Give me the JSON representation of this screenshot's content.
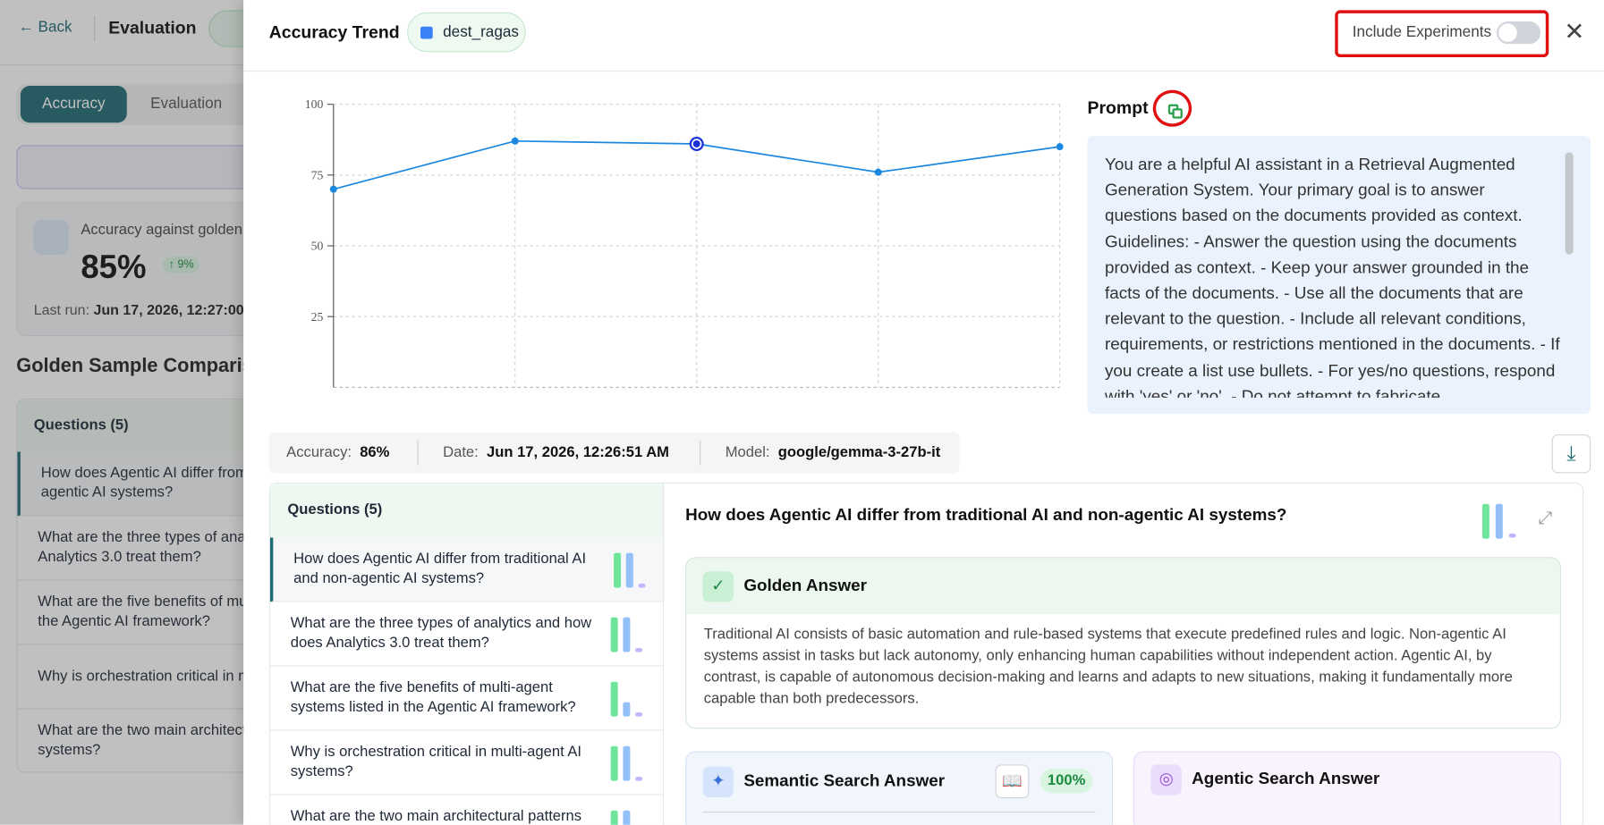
{
  "background": {
    "back": "Back",
    "title": "Evaluation",
    "tabs": [
      "Accuracy",
      "Evaluation"
    ],
    "accuracy_card": {
      "label": "Accuracy against golden s",
      "value": "85%",
      "change": "↑ 9%",
      "last_run_label": "Last run:",
      "last_run_value": "Jun 17, 2026, 12:27:00"
    },
    "section_title": "Golden Sample Comparis"
  },
  "questions": {
    "header": "Questions (5)",
    "items": [
      "How does Agentic AI differ from traditional AI and non-agentic AI systems?",
      "What are the three types of analytics and how does Analytics 3.0 treat them?",
      "What are the five benefits of multi-agent systems listed in the Agentic AI framework?",
      "Why is orchestration critical in multi-agent AI systems?",
      "What are the two main architectural patterns for multi-agent systems?"
    ]
  },
  "modal": {
    "title": "Accuracy Trend",
    "dataset": "dest_ragas",
    "include_experiments": "Include Experiments",
    "prompt": {
      "title": "Prompt",
      "text": "You are a helpful AI assistant in a Retrieval Augmented Generation System. Your primary goal is to answer questions based on the documents provided as context. Guidelines: - Answer the question using the documents provided as context. - Keep your answer grounded in the facts of the documents. - Use all the documents that are relevant to the question. - Include all relevant conditions, requirements, or restrictions mentioned in the documents. - If you create a list use bullets. - For yes/no questions, respond with 'yes' or 'no'. - Do not attempt to fabricate"
    },
    "meta": {
      "accuracy_label": "Accuracy:",
      "accuracy_value": "86%",
      "date_label": "Date:",
      "date_value": "Jun 17, 2026, 12:26:51 AM",
      "model_label": "Model:",
      "model_value": "google/gemma-3-27b-it"
    },
    "detail": {
      "question": "How does Agentic AI differ from traditional AI and non-agentic AI systems?",
      "golden": {
        "title": "Golden Answer",
        "text": "Traditional AI consists of basic automation and rule-based systems that execute predefined rules and logic. Non-agentic AI systems assist in tasks but lack autonomy, only enhancing human capabilities without independent action. Agentic AI, by contrast, is capable of autonomous decision-making and learns and adapts to new situations, making it fundamentally more capable than both predecessors."
      },
      "semantic": {
        "title": "Semantic Search Answer",
        "score": "100%"
      },
      "agentic": {
        "title": "Agentic Search Answer"
      }
    }
  },
  "chart_data": {
    "type": "line",
    "categories": [
      null,
      null,
      null,
      null,
      null
    ],
    "series": [
      {
        "name": null,
        "color": "#1a88e0",
        "values": [
          70,
          87,
          86,
          76,
          85
        ]
      }
    ],
    "ylim": [
      0,
      100
    ],
    "yticks": [
      25,
      50,
      75,
      100
    ],
    "grid": true
  }
}
